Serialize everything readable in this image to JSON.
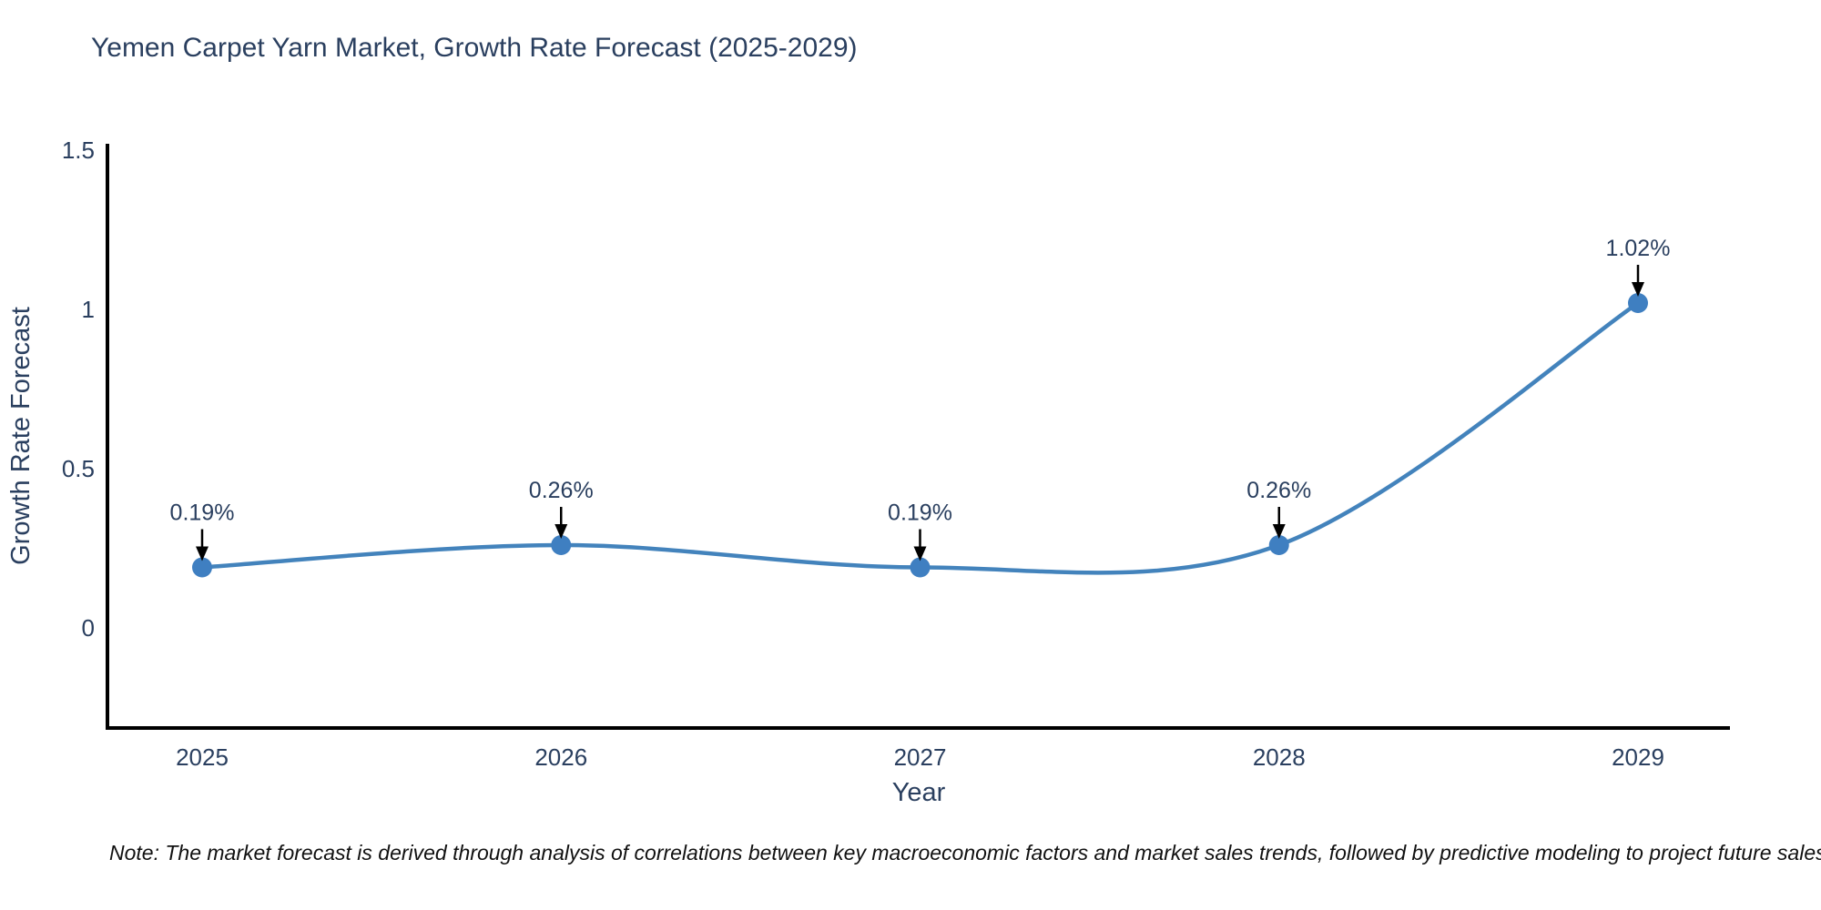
{
  "title": "Yemen Carpet Yarn Market, Growth Rate Forecast (2025-2029)",
  "note": "Note: The market forecast is derived through analysis of correlations between key macroeconomic factors and market sales trends, followed by predictive modeling to project future sales",
  "chart_data": {
    "type": "line",
    "title": "Yemen Carpet Yarn Market, Growth Rate Forecast (2025-2029)",
    "categories": [
      "2025",
      "2026",
      "2027",
      "2028",
      "2029"
    ],
    "values": [
      0.19,
      0.26,
      0.19,
      0.26,
      1.02
    ],
    "point_labels": [
      "0.19%",
      "0.26%",
      "0.19%",
      "0.26%",
      "1.02%"
    ],
    "xlabel": "Year",
    "ylabel": "Growth Rate Forecast",
    "yticks": [
      0,
      0.5,
      1,
      1.5
    ],
    "ytick_labels": [
      "0",
      "0.5",
      "1",
      "1.5"
    ],
    "ylim": [
      -0.31,
      1.55
    ],
    "line_shape": "spline",
    "grid": false,
    "legend": "none",
    "colors": {
      "line": "#4383bc",
      "marker": "#3f7fc1",
      "axis": "#000000",
      "text": "#2a3f5f",
      "arrow": "#000000",
      "note_text": "#111111",
      "background": "#ffffff"
    }
  }
}
